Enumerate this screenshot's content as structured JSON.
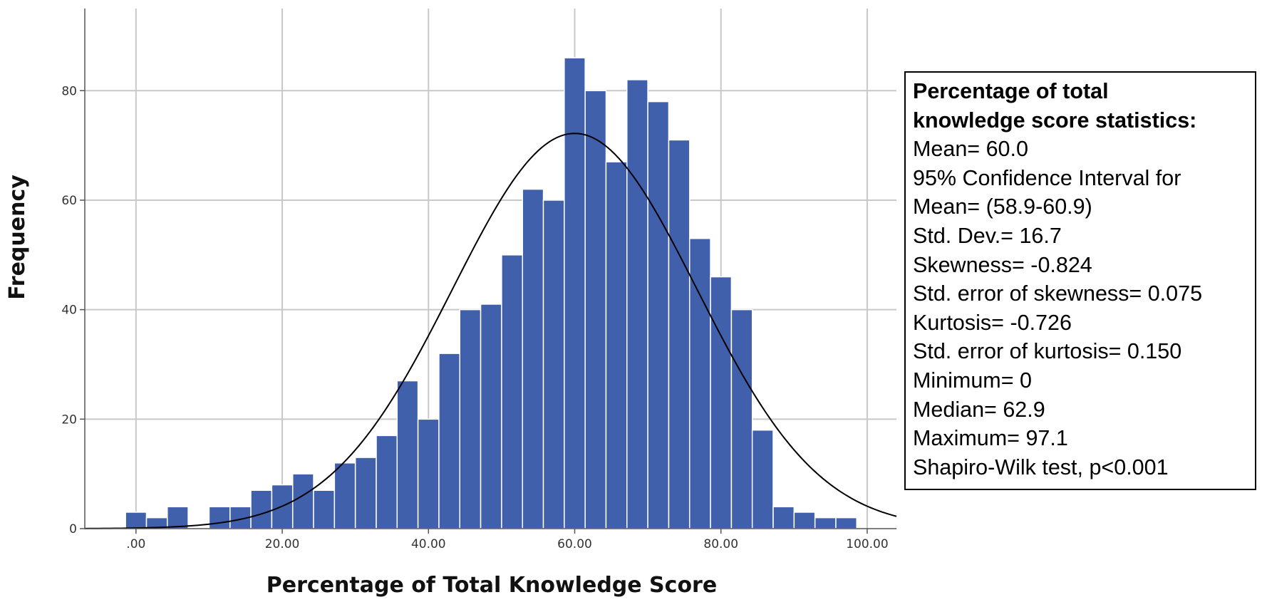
{
  "chart_data": {
    "type": "bar",
    "xlabel": "Percentage of Total Knowledge Score",
    "ylabel": "Frequency",
    "xlim": [
      -7,
      104
    ],
    "ylim": [
      0,
      95
    ],
    "x_ticks": [
      0,
      20,
      40,
      60,
      80,
      100
    ],
    "x_tick_labels": [
      ".00",
      "20.00",
      "40.00",
      "60.00",
      "80.00",
      "100.00"
    ],
    "y_ticks": [
      0,
      20,
      40,
      60,
      80
    ],
    "y_tick_labels": [
      "0",
      "20",
      "40",
      "60",
      "80"
    ],
    "grid": true,
    "bin_width": 2.857,
    "bin_centers": [
      0,
      2.86,
      5.71,
      8.57,
      11.43,
      14.29,
      17.14,
      20,
      22.86,
      25.71,
      28.57,
      31.43,
      34.29,
      37.14,
      40,
      42.86,
      45.71,
      48.57,
      51.43,
      54.29,
      57.14,
      60,
      62.86,
      65.71,
      68.57,
      71.43,
      74.29,
      77.14,
      80,
      82.86,
      85.71,
      88.57,
      91.43,
      94.29,
      97.14
    ],
    "values": [
      3,
      2,
      4,
      0,
      4,
      4,
      7,
      8,
      10,
      7,
      12,
      13,
      17,
      27,
      20,
      32,
      40,
      41,
      50,
      62,
      60,
      86,
      80,
      67,
      82,
      78,
      71,
      53,
      46,
      40,
      18,
      4,
      3,
      2,
      2
    ],
    "bar_color": "#4160AC",
    "bar_edge_color": "#FFFFFF",
    "normal_curve": {
      "mean": 60.0,
      "std_dev": 16.7,
      "peak": 72.2,
      "color": "#000000"
    }
  },
  "stats_box": {
    "title_line1": "Percentage of total",
    "title_line2": "knowledge score statistics:",
    "lines": [
      "Mean= 60.0",
      "95% Confidence Interval for",
      "Mean= (58.9-60.9)",
      "Std. Dev.= 16.7",
      "Skewness= -0.824",
      "Std. error of skewness= 0.075",
      "Kurtosis= -0.726",
      "Std. error of kurtosis= 0.150",
      "Minimum= 0",
      "Median= 62.9",
      "Maximum= 97.1",
      "Shapiro-Wilk test, p<0.001"
    ]
  }
}
